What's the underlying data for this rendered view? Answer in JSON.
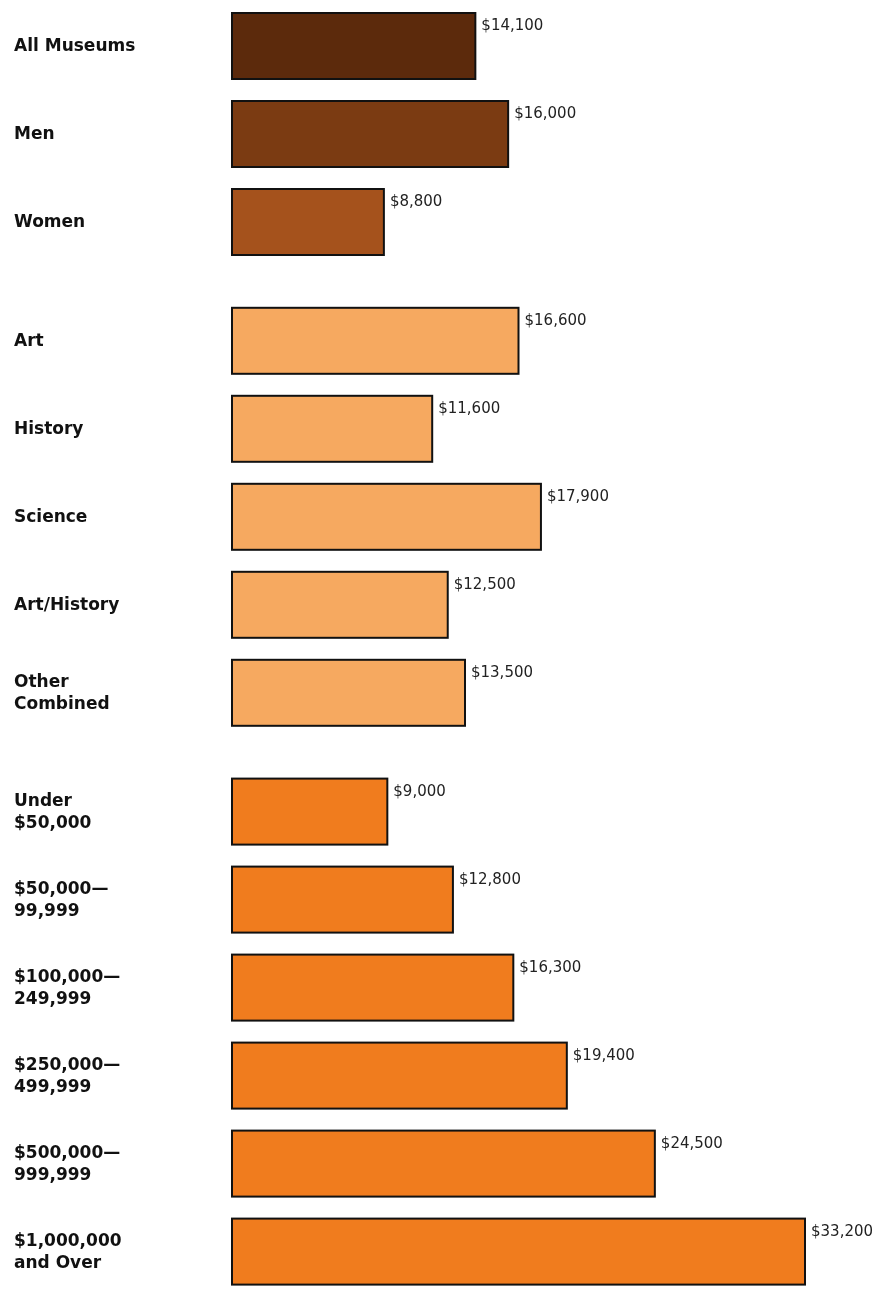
{
  "chart_data": {
    "type": "bar",
    "orientation": "horizontal",
    "categories": [
      "All Museums",
      "Men",
      "Women",
      null,
      "Art",
      "History",
      "Science",
      "Art/History",
      "Other Combined",
      null,
      "Under $50,000",
      "$50,000—99,999",
      "$100,000—249,999",
      "$250,000—499,999",
      "$500,000—999,999",
      "$1,000,000 and Over"
    ],
    "values": [
      14100,
      16000,
      8800,
      null,
      16600,
      11600,
      17900,
      12500,
      13500,
      null,
      9000,
      12800,
      16300,
      19400,
      24500,
      33200
    ],
    "colors": [
      "#5c2a0c",
      "#7b3b12",
      "#a5521c",
      null,
      "#f6a960",
      "#f6a960",
      "#f6a960",
      "#f6a960",
      "#f6a960",
      null,
      "#f07c1e",
      "#f07c1e",
      "#f07c1e",
      "#f07c1e",
      "#f07c1e",
      "#f07c1e"
    ],
    "value_labels": [
      "$14,100",
      "$16,000",
      "$8,800",
      null,
      "$16,600",
      "$11,600",
      "$17,900",
      "$12,500",
      "$13,500",
      null,
      "$9,000",
      "$12,800",
      "$16,300",
      "$19,400",
      "$24,500",
      "$33,200"
    ]
  }
}
